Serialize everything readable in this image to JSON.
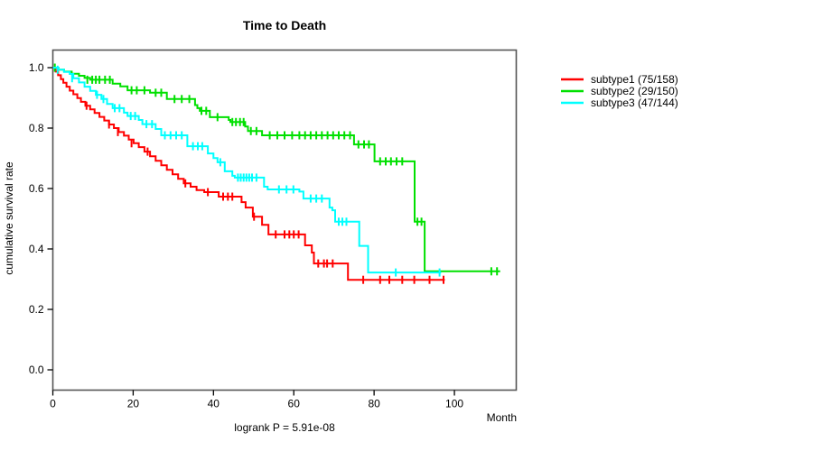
{
  "title": "Time to Death",
  "axes": {
    "x_label": "Month",
    "y_label": "cumulative survival rate",
    "x_ticks": [
      0,
      20,
      40,
      60,
      80,
      100
    ],
    "y_ticks": [
      "0.0",
      "0.2",
      "0.4",
      "0.6",
      "0.8",
      "1.0"
    ],
    "x_max": 115.4
  },
  "annotation": "logrank P = 5.91e-08",
  "chart_data": {
    "type": "line",
    "chart_style": "kaplan-meier-step-curves",
    "title": "Time to Death",
    "xlabel": "Month",
    "ylabel": "cumulative survival rate",
    "xlim": [
      0,
      115.4
    ],
    "ylim": [
      0,
      1.0
    ],
    "grid": false,
    "legend_position": "right-outside",
    "series": [
      {
        "name": "subtype1",
        "legend_label": "subtype1 (75/158)",
        "events": 75,
        "n": 158,
        "color": "#FF0000",
        "end": 97.6,
        "steps": [
          [
            0,
            1.0
          ],
          [
            0.7,
            0.987
          ],
          [
            1.3,
            0.975
          ],
          [
            2,
            0.962
          ],
          [
            2.6,
            0.95
          ],
          [
            3.4,
            0.937
          ],
          [
            4.2,
            0.924
          ],
          [
            5.1,
            0.912
          ],
          [
            6.1,
            0.899
          ],
          [
            7,
            0.887
          ],
          [
            8.1,
            0.874
          ],
          [
            9.3,
            0.862
          ],
          [
            10.4,
            0.85
          ],
          [
            11.6,
            0.837
          ],
          [
            12.8,
            0.825
          ],
          [
            14,
            0.812
          ],
          [
            15.2,
            0.8
          ],
          [
            16.4,
            0.787
          ],
          [
            17.7,
            0.775
          ],
          [
            18.9,
            0.762
          ],
          [
            20.1,
            0.75
          ],
          [
            21.4,
            0.737
          ],
          [
            22.8,
            0.722
          ],
          [
            24.2,
            0.707
          ],
          [
            25.6,
            0.692
          ],
          [
            27,
            0.677
          ],
          [
            28.4,
            0.662
          ],
          [
            29.8,
            0.647
          ],
          [
            31.2,
            0.632
          ],
          [
            32.6,
            0.617
          ],
          [
            34.3,
            0.606
          ],
          [
            35.8,
            0.595
          ],
          [
            37.7,
            0.588
          ],
          [
            41.3,
            0.573
          ],
          [
            47,
            0.555
          ],
          [
            48,
            0.537
          ],
          [
            49.8,
            0.507
          ],
          [
            52.1,
            0.48
          ],
          [
            53.7,
            0.448
          ],
          [
            62.8,
            0.412
          ],
          [
            64.5,
            0.388
          ],
          [
            65,
            0.352
          ],
          [
            73.5,
            0.298
          ]
        ],
        "censors": [
          [
            8.4,
            0.874
          ],
          [
            14,
            0.812
          ],
          [
            16.2,
            0.787
          ],
          [
            19.6,
            0.75
          ],
          [
            23.6,
            0.722
          ],
          [
            33,
            0.617
          ],
          [
            38.6,
            0.588
          ],
          [
            42.4,
            0.573
          ],
          [
            43.6,
            0.573
          ],
          [
            44.7,
            0.573
          ],
          [
            50.1,
            0.507
          ],
          [
            55.5,
            0.448
          ],
          [
            57.7,
            0.448
          ],
          [
            58.9,
            0.448
          ],
          [
            60,
            0.448
          ],
          [
            61.2,
            0.448
          ],
          [
            66.1,
            0.352
          ],
          [
            67.5,
            0.352
          ],
          [
            68.3,
            0.352
          ],
          [
            69.7,
            0.352
          ],
          [
            77.3,
            0.298
          ],
          [
            81.5,
            0.298
          ],
          [
            83.8,
            0.298
          ],
          [
            87,
            0.298
          ],
          [
            90,
            0.298
          ],
          [
            93.8,
            0.298
          ],
          [
            97.3,
            0.298
          ]
        ]
      },
      {
        "name": "subtype2",
        "legend_label": "subtype2 (29/150)",
        "events": 29,
        "n": 150,
        "color": "#00E000",
        "end": 111.4,
        "steps": [
          [
            0,
            1.0
          ],
          [
            1.4,
            0.993
          ],
          [
            2.8,
            0.987
          ],
          [
            4.7,
            0.98
          ],
          [
            6.5,
            0.973
          ],
          [
            7.9,
            0.966
          ],
          [
            9.3,
            0.96
          ],
          [
            14.9,
            0.947
          ],
          [
            16.8,
            0.938
          ],
          [
            18.6,
            0.925
          ],
          [
            24.2,
            0.917
          ],
          [
            28.4,
            0.896
          ],
          [
            35.4,
            0.876
          ],
          [
            36,
            0.866
          ],
          [
            36.6,
            0.857
          ],
          [
            39.1,
            0.836
          ],
          [
            43.8,
            0.827
          ],
          [
            44.2,
            0.82
          ],
          [
            47.9,
            0.805
          ],
          [
            48.6,
            0.79
          ],
          [
            52.1,
            0.776
          ],
          [
            75,
            0.746
          ],
          [
            80.1,
            0.69
          ],
          [
            90.1,
            0.49
          ],
          [
            92.6,
            0.326
          ]
        ],
        "censors": [
          [
            0.5,
            1.0
          ],
          [
            8.6,
            0.96
          ],
          [
            9.8,
            0.96
          ],
          [
            10.7,
            0.96
          ],
          [
            11.6,
            0.96
          ],
          [
            13,
            0.96
          ],
          [
            14.2,
            0.96
          ],
          [
            19.6,
            0.925
          ],
          [
            20.9,
            0.925
          ],
          [
            22.8,
            0.925
          ],
          [
            25.6,
            0.917
          ],
          [
            27,
            0.917
          ],
          [
            30.3,
            0.896
          ],
          [
            32.1,
            0.896
          ],
          [
            34,
            0.896
          ],
          [
            37,
            0.857
          ],
          [
            38.2,
            0.857
          ],
          [
            41,
            0.836
          ],
          [
            44.7,
            0.82
          ],
          [
            45.6,
            0.82
          ],
          [
            46.6,
            0.82
          ],
          [
            47.5,
            0.82
          ],
          [
            49.3,
            0.79
          ],
          [
            50.7,
            0.79
          ],
          [
            54,
            0.776
          ],
          [
            55.9,
            0.776
          ],
          [
            57.7,
            0.776
          ],
          [
            59.6,
            0.776
          ],
          [
            61.4,
            0.776
          ],
          [
            62.8,
            0.776
          ],
          [
            64.2,
            0.776
          ],
          [
            65.6,
            0.776
          ],
          [
            67,
            0.776
          ],
          [
            68.4,
            0.776
          ],
          [
            69.8,
            0.776
          ],
          [
            71.2,
            0.776
          ],
          [
            72.6,
            0.776
          ],
          [
            74,
            0.776
          ],
          [
            76.1,
            0.746
          ],
          [
            77.5,
            0.746
          ],
          [
            78.7,
            0.746
          ],
          [
            81.5,
            0.69
          ],
          [
            82.9,
            0.69
          ],
          [
            84.2,
            0.69
          ],
          [
            85.6,
            0.69
          ],
          [
            87,
            0.69
          ],
          [
            90.8,
            0.49
          ],
          [
            91.8,
            0.49
          ],
          [
            109.2,
            0.326
          ],
          [
            110.6,
            0.326
          ]
        ]
      },
      {
        "name": "subtype3",
        "legend_label": "subtype3 (47/144)",
        "events": 47,
        "n": 144,
        "color": "#00FFFF",
        "end": 96.7,
        "steps": [
          [
            0,
            1.0
          ],
          [
            1.4,
            0.993
          ],
          [
            2.8,
            0.986
          ],
          [
            4.2,
            0.979
          ],
          [
            5.1,
            0.965
          ],
          [
            6.5,
            0.951
          ],
          [
            7.9,
            0.937
          ],
          [
            9.3,
            0.923
          ],
          [
            10.7,
            0.91
          ],
          [
            12.1,
            0.896
          ],
          [
            13.5,
            0.88
          ],
          [
            14.9,
            0.866
          ],
          [
            17.7,
            0.851
          ],
          [
            18.6,
            0.84
          ],
          [
            21.4,
            0.827
          ],
          [
            22.3,
            0.813
          ],
          [
            25.6,
            0.797
          ],
          [
            27,
            0.776
          ],
          [
            33.5,
            0.74
          ],
          [
            38.6,
            0.716
          ],
          [
            40,
            0.701
          ],
          [
            41,
            0.687
          ],
          [
            42.8,
            0.657
          ],
          [
            44.7,
            0.642
          ],
          [
            45.3,
            0.636
          ],
          [
            52.6,
            0.606
          ],
          [
            53.5,
            0.597
          ],
          [
            61.4,
            0.59
          ],
          [
            62.4,
            0.567
          ],
          [
            68.9,
            0.537
          ],
          [
            69.6,
            0.528
          ],
          [
            70.3,
            0.49
          ],
          [
            76.3,
            0.41
          ],
          [
            78.5,
            0.322
          ]
        ],
        "censors": [
          [
            1.2,
            0.993
          ],
          [
            4.8,
            0.965
          ],
          [
            11,
            0.91
          ],
          [
            12.6,
            0.896
          ],
          [
            15.4,
            0.866
          ],
          [
            16.6,
            0.866
          ],
          [
            19.4,
            0.84
          ],
          [
            20.5,
            0.84
          ],
          [
            23.3,
            0.813
          ],
          [
            24.7,
            0.813
          ],
          [
            27.9,
            0.776
          ],
          [
            29.3,
            0.776
          ],
          [
            30.7,
            0.776
          ],
          [
            32.1,
            0.776
          ],
          [
            34.9,
            0.74
          ],
          [
            36.1,
            0.74
          ],
          [
            37.2,
            0.74
          ],
          [
            41.7,
            0.687
          ],
          [
            46.1,
            0.636
          ],
          [
            46.8,
            0.636
          ],
          [
            47.5,
            0.636
          ],
          [
            48.2,
            0.636
          ],
          [
            48.9,
            0.636
          ],
          [
            49.6,
            0.636
          ],
          [
            50.7,
            0.636
          ],
          [
            56.3,
            0.597
          ],
          [
            58.2,
            0.597
          ],
          [
            59.9,
            0.597
          ],
          [
            64.2,
            0.567
          ],
          [
            65.6,
            0.567
          ],
          [
            67,
            0.567
          ],
          [
            71.2,
            0.49
          ],
          [
            72.1,
            0.49
          ],
          [
            73.1,
            0.49
          ],
          [
            85.4,
            0.322
          ],
          [
            96.3,
            0.322
          ]
        ]
      }
    ]
  }
}
